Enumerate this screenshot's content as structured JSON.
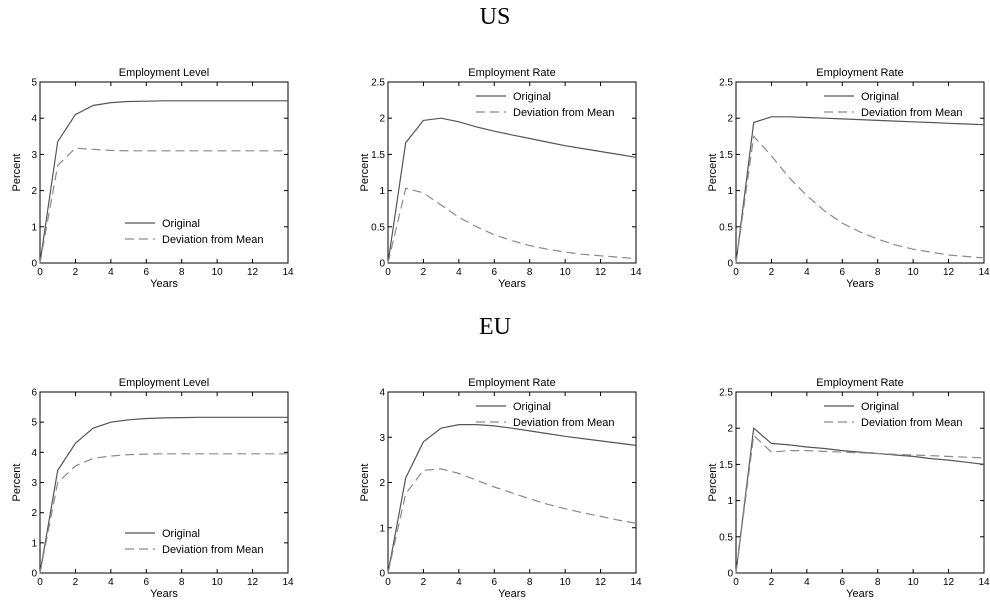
{
  "sections": [
    {
      "title": "US"
    },
    {
      "title": "EU"
    }
  ],
  "chart_data": [
    {
      "type": "line",
      "title": "Employment Level",
      "xlabel": "Years",
      "ylabel": "Percent",
      "xlim": [
        0,
        14
      ],
      "ylim": [
        0,
        5
      ],
      "xticks": [
        0,
        2,
        4,
        6,
        8,
        10,
        12,
        14
      ],
      "yticks": [
        0,
        1,
        2,
        3,
        4,
        5
      ],
      "legend": "bottom-right",
      "x": [
        0,
        1,
        2,
        3,
        4,
        5,
        6,
        7,
        8,
        9,
        10,
        11,
        12,
        13,
        14
      ],
      "series": [
        {
          "name": "Original",
          "style": "solid",
          "values": [
            0,
            3.35,
            4.1,
            4.35,
            4.43,
            4.46,
            4.47,
            4.48,
            4.48,
            4.48,
            4.48,
            4.48,
            4.48,
            4.48,
            4.48
          ]
        },
        {
          "name": "Deviation from Mean",
          "style": "dashed",
          "values": [
            0,
            2.7,
            3.17,
            3.14,
            3.11,
            3.1,
            3.1,
            3.1,
            3.1,
            3.1,
            3.1,
            3.1,
            3.1,
            3.1,
            3.1
          ]
        }
      ]
    },
    {
      "type": "line",
      "title": "Employment Rate",
      "xlabel": "Years",
      "ylabel": "Percent",
      "xlim": [
        0,
        14
      ],
      "ylim": [
        0,
        2.5
      ],
      "xticks": [
        0,
        2,
        4,
        6,
        8,
        10,
        12,
        14
      ],
      "yticks": [
        0,
        0.5,
        1,
        1.5,
        2,
        2.5
      ],
      "legend": "top-right",
      "x": [
        0,
        1,
        2,
        3,
        4,
        5,
        6,
        7,
        8,
        9,
        10,
        11,
        12,
        13,
        14
      ],
      "series": [
        {
          "name": "Original",
          "style": "solid",
          "values": [
            0,
            1.66,
            1.97,
            2.0,
            1.95,
            1.88,
            1.82,
            1.77,
            1.72,
            1.67,
            1.62,
            1.58,
            1.54,
            1.5,
            1.46
          ]
        },
        {
          "name": "Deviation from Mean",
          "style": "dashed",
          "values": [
            0,
            1.03,
            0.97,
            0.8,
            0.63,
            0.5,
            0.39,
            0.31,
            0.24,
            0.19,
            0.15,
            0.12,
            0.1,
            0.08,
            0.06
          ]
        }
      ]
    },
    {
      "type": "line",
      "title": "Employment Rate",
      "xlabel": "Years",
      "ylabel": "Percent",
      "xlim": [
        0,
        14
      ],
      "ylim": [
        0,
        2.5
      ],
      "xticks": [
        0,
        2,
        4,
        6,
        8,
        10,
        12,
        14
      ],
      "yticks": [
        0,
        0.5,
        1,
        1.5,
        2,
        2.5
      ],
      "legend": "top-right",
      "x": [
        0,
        1,
        2,
        3,
        4,
        5,
        6,
        7,
        8,
        9,
        10,
        11,
        12,
        13,
        14
      ],
      "series": [
        {
          "name": "Original",
          "style": "solid",
          "values": [
            0,
            1.94,
            2.02,
            2.02,
            2.01,
            2.0,
            1.99,
            1.98,
            1.97,
            1.96,
            1.95,
            1.94,
            1.93,
            1.92,
            1.91
          ]
        },
        {
          "name": "Deviation from Mean",
          "style": "dashed",
          "values": [
            0,
            1.75,
            1.48,
            1.18,
            0.93,
            0.72,
            0.55,
            0.43,
            0.33,
            0.25,
            0.19,
            0.15,
            0.11,
            0.09,
            0.07
          ]
        }
      ]
    },
    {
      "type": "line",
      "title": "Employment Level",
      "xlabel": "Years",
      "ylabel": "Percent",
      "xlim": [
        0,
        14
      ],
      "ylim": [
        0,
        6
      ],
      "xticks": [
        0,
        2,
        4,
        6,
        8,
        10,
        12,
        14
      ],
      "yticks": [
        0,
        1,
        2,
        3,
        4,
        5,
        6
      ],
      "legend": "bottom-right",
      "x": [
        0,
        1,
        2,
        3,
        4,
        5,
        6,
        7,
        8,
        9,
        10,
        11,
        12,
        13,
        14
      ],
      "series": [
        {
          "name": "Original",
          "style": "solid",
          "values": [
            0,
            3.4,
            4.3,
            4.8,
            5.0,
            5.08,
            5.12,
            5.14,
            5.15,
            5.16,
            5.16,
            5.16,
            5.16,
            5.16,
            5.16
          ]
        },
        {
          "name": "Deviation from Mean",
          "style": "dashed",
          "values": [
            0,
            3.0,
            3.55,
            3.8,
            3.88,
            3.92,
            3.94,
            3.95,
            3.95,
            3.95,
            3.95,
            3.95,
            3.95,
            3.95,
            3.95
          ]
        }
      ]
    },
    {
      "type": "line",
      "title": "Employment Rate",
      "xlabel": "Years",
      "ylabel": "Percent",
      "xlim": [
        0,
        14
      ],
      "ylim": [
        0,
        4
      ],
      "xticks": [
        0,
        2,
        4,
        6,
        8,
        10,
        12,
        14
      ],
      "yticks": [
        0,
        1,
        2,
        3,
        4
      ],
      "legend": "top-right",
      "x": [
        0,
        1,
        2,
        3,
        4,
        5,
        6,
        7,
        8,
        9,
        10,
        11,
        12,
        13,
        14
      ],
      "series": [
        {
          "name": "Original",
          "style": "solid",
          "values": [
            0,
            2.1,
            2.9,
            3.2,
            3.28,
            3.28,
            3.25,
            3.2,
            3.14,
            3.08,
            3.02,
            2.97,
            2.92,
            2.87,
            2.82
          ]
        },
        {
          "name": "Deviation from Mean",
          "style": "dashed",
          "values": [
            0,
            1.75,
            2.27,
            2.3,
            2.2,
            2.05,
            1.9,
            1.77,
            1.64,
            1.52,
            1.42,
            1.33,
            1.25,
            1.17,
            1.1
          ]
        }
      ]
    },
    {
      "type": "line",
      "title": "Employment Rate",
      "xlabel": "Years",
      "ylabel": "Percent",
      "xlim": [
        0,
        14
      ],
      "ylim": [
        0,
        2.5
      ],
      "xticks": [
        0,
        2,
        4,
        6,
        8,
        10,
        12,
        14
      ],
      "yticks": [
        0,
        0.5,
        1,
        1.5,
        2,
        2.5
      ],
      "legend": "top-right",
      "x": [
        0,
        1,
        2,
        3,
        4,
        5,
        6,
        7,
        8,
        9,
        10,
        11,
        12,
        13,
        14
      ],
      "series": [
        {
          "name": "Original",
          "style": "solid",
          "values": [
            0,
            2.0,
            1.79,
            1.77,
            1.74,
            1.72,
            1.69,
            1.67,
            1.65,
            1.63,
            1.61,
            1.58,
            1.56,
            1.53,
            1.5
          ]
        },
        {
          "name": "Deviation from Mean",
          "style": "dashed",
          "values": [
            0,
            1.9,
            1.67,
            1.69,
            1.69,
            1.68,
            1.67,
            1.66,
            1.65,
            1.64,
            1.63,
            1.62,
            1.61,
            1.6,
            1.59
          ]
        }
      ]
    }
  ]
}
